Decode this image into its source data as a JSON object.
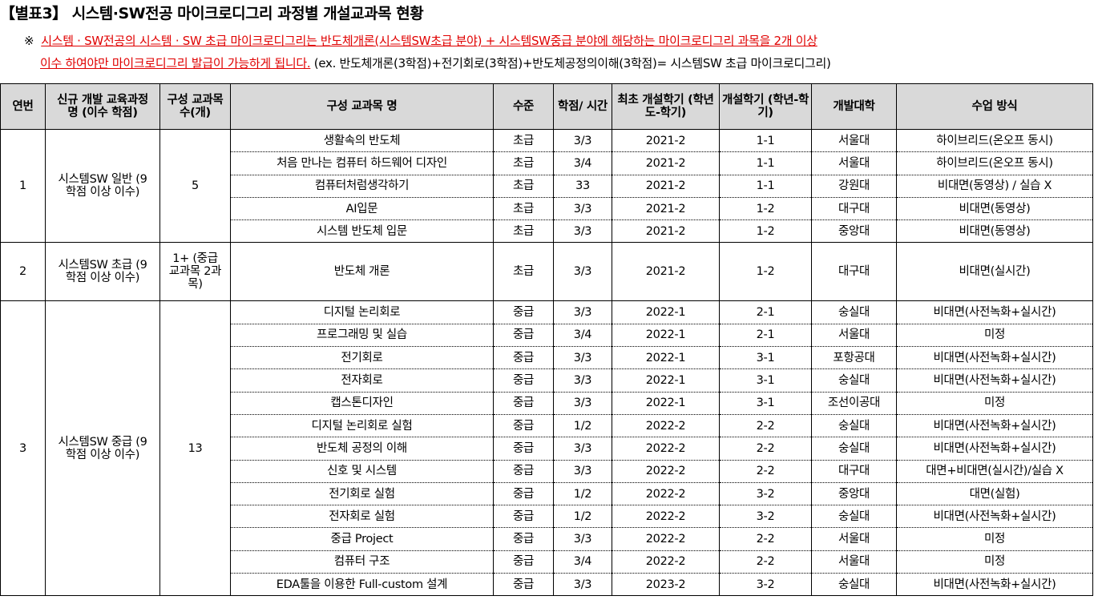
{
  "title": "【별표3】 시스템·SW전공 마이크로디그리 과정별 개설교과목 현황",
  "note": {
    "mark": "※",
    "red1": "시스템 · SW전공의 시스템 · SW 초급 마이크로디그리는 반도체개론(시스템SW초급 분야) + 시스템SW중급 분야에 해당하는 마이크로디그리 과목을 2개 이상",
    "red2": "이수 하여야만 마이크로디그리 발급이 가능하게 됩니다.",
    "example": "(ex. 반도체개론(3학점)+전기회로(3학점)+반도체공정의이해(3학점)= 시스템SW 초급 마이크로디그리)"
  },
  "headers": [
    "연번",
    "신규 개발 교육과정 명 (이수 학점)",
    "구성 교과목 수(개)",
    "구성 교과목 명",
    "수준",
    "학점/ 시간",
    "최초 개설학기 (학년도-학기)",
    "개설학기 (학년-학기)",
    "개발대학",
    "수업 방식"
  ],
  "groups": [
    {
      "no": "1",
      "name": "시스템SW 일반 (9학점 이상 이수)",
      "count": "5",
      "courses": [
        [
          "생활속의 반도체",
          "초급",
          "3/3",
          "2021-2",
          "1-1",
          "서울대",
          "하이브리드(온오프 동시)"
        ],
        [
          "처음 만나는 컴퓨터 하드웨어 디자인",
          "초급",
          "3/4",
          "2021-2",
          "1-1",
          "서울대",
          "하이브리드(온오프 동시)"
        ],
        [
          "컴퓨터처럼생각하기",
          "초급",
          "33",
          "2021-2",
          "1-1",
          "강원대",
          "비대면(동영상) / 실습 X"
        ],
        [
          "AI입문",
          "초급",
          "3/3",
          "2021-2",
          "1-2",
          "대구대",
          "비대면(동영상)"
        ],
        [
          "시스템 반도체 입문",
          "초급",
          "3/3",
          "2021-2",
          "1-2",
          "중앙대",
          "비대면(동영상)"
        ]
      ]
    },
    {
      "no": "2",
      "name": "시스템SW 초급 (9학점 이상 이수)",
      "count": "1+ (중급교과목 2과목)",
      "courses": [
        [
          "반도체 개론",
          "초급",
          "3/3",
          "2021-2",
          "1-2",
          "대구대",
          "비대면(실시간)"
        ]
      ]
    },
    {
      "no": "3",
      "name": "시스템SW 중급 (9학점 이상 이수)",
      "count": "13",
      "courses": [
        [
          "디지털 논리회로",
          "중급",
          "3/3",
          "2022-1",
          "2-1",
          "숭실대",
          "비대면(사전녹화+실시간)"
        ],
        [
          "프로그래밍 및 실습",
          "중급",
          "3/4",
          "2022-1",
          "2-1",
          "서울대",
          "미정"
        ],
        [
          "전기회로",
          "중급",
          "3/3",
          "2022-1",
          "3-1",
          "포항공대",
          "비대면(사전녹화+실시간)"
        ],
        [
          "전자회로",
          "중급",
          "3/3",
          "2022-1",
          "3-1",
          "숭실대",
          "비대면(사전녹화+실시간)"
        ],
        [
          "캡스톤디자인",
          "중급",
          "3/3",
          "2022-1",
          "3-1",
          "조선이공대",
          "미정"
        ],
        [
          "디지털 논리회로 실험",
          "중급",
          "1/2",
          "2022-2",
          "2-2",
          "숭실대",
          "비대면(사전녹화+실시간)"
        ],
        [
          "반도체 공정의 이해",
          "중급",
          "3/3",
          "2022-2",
          "2-2",
          "숭실대",
          "비대면(사전녹화+실시간)"
        ],
        [
          "신호 및 시스템",
          "중급",
          "3/3",
          "2022-2",
          "2-2",
          "대구대",
          "대면+비대면(실시간)/실습 X"
        ],
        [
          "전기회로 실험",
          "중급",
          "1/2",
          "2022-2",
          "3-2",
          "중앙대",
          "대면(실험)"
        ],
        [
          "전자회로 실험",
          "중급",
          "1/2",
          "2022-2",
          "3-2",
          "숭실대",
          "비대면(사전녹화+실시간)"
        ],
        [
          "중급 Project",
          "중급",
          "3/3",
          "2022-2",
          "2-2",
          "서울대",
          "미정"
        ],
        [
          "컴퓨터 구조",
          "중급",
          "3/4",
          "2022-2",
          "2-2",
          "서울대",
          "미정"
        ],
        [
          "EDA툴을 이용한 Full-custom 설계",
          "중급",
          "3/3",
          "2023-2",
          "3-2",
          "숭실대",
          "비대면(사전녹화+실시간)"
        ]
      ]
    }
  ]
}
